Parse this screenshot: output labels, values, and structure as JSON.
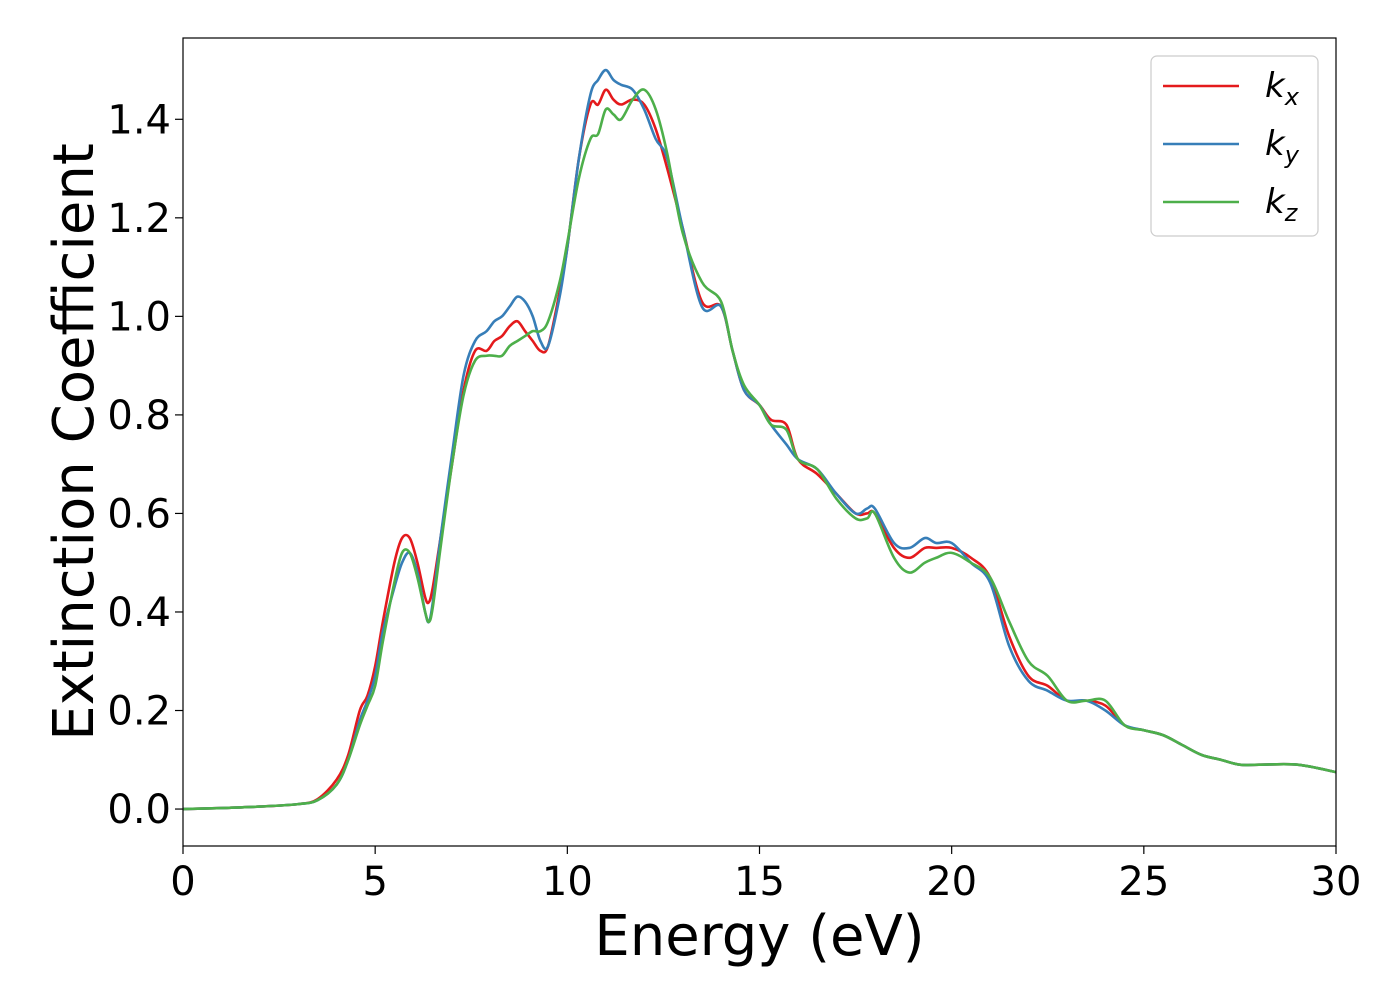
{
  "chart_data": {
    "type": "line",
    "title": "",
    "xlabel": "Energy (eV)",
    "ylabel": "Extinction Coefficient",
    "xlim": [
      0,
      30
    ],
    "ylim": [
      -0.075,
      1.565
    ],
    "xticks": [
      0,
      5,
      10,
      15,
      20,
      25,
      30
    ],
    "xtick_labels": [
      "0",
      "5",
      "10",
      "15",
      "20",
      "25",
      "30"
    ],
    "yticks": [
      0.0,
      0.2,
      0.4,
      0.6,
      0.8,
      1.0,
      1.2,
      1.4
    ],
    "ytick_labels": [
      "0.0",
      "0.2",
      "0.4",
      "0.6",
      "0.8",
      "1.0",
      "1.2",
      "1.4"
    ],
    "grid": false,
    "legend_position": "top-right",
    "series": [
      {
        "name": "k",
        "subscript": "x",
        "color": "#e41a1c",
        "x": [
          0,
          1,
          2,
          3,
          3.5,
          4,
          4.3,
          4.6,
          4.8,
          5.0,
          5.2,
          5.5,
          5.7,
          5.9,
          6.1,
          6.3,
          6.4,
          6.5,
          6.7,
          7.0,
          7.3,
          7.6,
          7.9,
          8.1,
          8.3,
          8.5,
          8.7,
          8.9,
          9.1,
          9.3,
          9.5,
          9.8,
          10.0,
          10.3,
          10.6,
          10.8,
          11.0,
          11.2,
          11.4,
          11.7,
          12.0,
          12.3,
          12.6,
          13.0,
          13.5,
          14.0,
          14.3,
          14.6,
          15.0,
          15.3,
          15.7,
          16.0,
          16.5,
          17.0,
          17.5,
          17.8,
          18.0,
          18.5,
          18.9,
          19.3,
          19.6,
          20.0,
          20.5,
          21.0,
          21.5,
          22.0,
          22.5,
          23.0,
          23.5,
          24.0,
          24.5,
          25.0,
          25.5,
          26.0,
          26.5,
          27.0,
          27.5,
          28.0,
          29.0,
          30.0
        ],
        "values": [
          0.0,
          0.002,
          0.005,
          0.01,
          0.02,
          0.06,
          0.11,
          0.2,
          0.23,
          0.29,
          0.38,
          0.5,
          0.55,
          0.55,
          0.5,
          0.43,
          0.42,
          0.45,
          0.55,
          0.7,
          0.85,
          0.93,
          0.93,
          0.95,
          0.96,
          0.98,
          0.99,
          0.97,
          0.95,
          0.93,
          0.94,
          1.05,
          1.14,
          1.32,
          1.43,
          1.43,
          1.46,
          1.44,
          1.43,
          1.44,
          1.43,
          1.38,
          1.3,
          1.18,
          1.03,
          1.02,
          0.93,
          0.85,
          0.82,
          0.79,
          0.78,
          0.71,
          0.68,
          0.64,
          0.6,
          0.6,
          0.6,
          0.53,
          0.51,
          0.53,
          0.53,
          0.53,
          0.51,
          0.47,
          0.35,
          0.27,
          0.25,
          0.22,
          0.22,
          0.21,
          0.17,
          0.16,
          0.15,
          0.13,
          0.11,
          0.1,
          0.09,
          0.09,
          0.09,
          0.075
        ]
      },
      {
        "name": "k",
        "subscript": "y",
        "color": "#377eb8",
        "x": [
          0,
          1,
          2,
          3,
          3.5,
          4,
          4.3,
          4.6,
          4.8,
          5.0,
          5.2,
          5.5,
          5.7,
          5.9,
          6.1,
          6.3,
          6.4,
          6.5,
          6.7,
          7.0,
          7.3,
          7.6,
          7.9,
          8.1,
          8.3,
          8.5,
          8.7,
          8.9,
          9.1,
          9.3,
          9.5,
          9.8,
          10.0,
          10.3,
          10.6,
          10.8,
          11.0,
          11.2,
          11.4,
          11.7,
          12.0,
          12.3,
          12.6,
          13.0,
          13.5,
          14.0,
          14.3,
          14.6,
          15.0,
          15.3,
          15.7,
          16.0,
          16.5,
          17.0,
          17.5,
          17.8,
          18.0,
          18.5,
          18.9,
          19.3,
          19.6,
          20.0,
          20.5,
          21.0,
          21.5,
          22.0,
          22.5,
          23.0,
          23.5,
          24.0,
          24.5,
          25.0,
          25.5,
          26.0,
          26.5,
          27.0,
          27.5,
          28.0,
          29.0,
          30.0
        ],
        "values": [
          0.0,
          0.002,
          0.005,
          0.01,
          0.018,
          0.05,
          0.1,
          0.18,
          0.22,
          0.27,
          0.36,
          0.45,
          0.5,
          0.52,
          0.48,
          0.4,
          0.38,
          0.42,
          0.55,
          0.72,
          0.88,
          0.95,
          0.97,
          0.99,
          1.0,
          1.02,
          1.04,
          1.03,
          1.0,
          0.95,
          0.94,
          1.04,
          1.14,
          1.32,
          1.45,
          1.48,
          1.5,
          1.48,
          1.47,
          1.46,
          1.42,
          1.36,
          1.32,
          1.18,
          1.02,
          1.02,
          0.93,
          0.85,
          0.82,
          0.78,
          0.74,
          0.71,
          0.69,
          0.64,
          0.6,
          0.61,
          0.61,
          0.54,
          0.53,
          0.55,
          0.54,
          0.54,
          0.5,
          0.46,
          0.33,
          0.26,
          0.24,
          0.22,
          0.22,
          0.2,
          0.17,
          0.16,
          0.15,
          0.13,
          0.11,
          0.1,
          0.09,
          0.09,
          0.09,
          0.075
        ]
      },
      {
        "name": "k",
        "subscript": "z",
        "color": "#4daf4a",
        "x": [
          0,
          1,
          2,
          3,
          3.5,
          4,
          4.3,
          4.6,
          4.8,
          5.0,
          5.2,
          5.5,
          5.7,
          5.9,
          6.1,
          6.3,
          6.4,
          6.5,
          6.7,
          7.0,
          7.3,
          7.6,
          7.9,
          8.1,
          8.3,
          8.5,
          8.7,
          8.9,
          9.1,
          9.3,
          9.5,
          9.8,
          10.0,
          10.3,
          10.6,
          10.8,
          11.0,
          11.2,
          11.4,
          11.7,
          12.0,
          12.3,
          12.6,
          13.0,
          13.5,
          14.0,
          14.3,
          14.6,
          15.0,
          15.3,
          15.7,
          16.0,
          16.5,
          17.0,
          17.5,
          17.8,
          18.0,
          18.5,
          18.9,
          19.3,
          19.6,
          20.0,
          20.5,
          21.0,
          21.5,
          22.0,
          22.5,
          23.0,
          23.5,
          24.0,
          24.5,
          25.0,
          25.5,
          26.0,
          26.5,
          27.0,
          27.5,
          28.0,
          29.0,
          30.0
        ],
        "values": [
          0.0,
          0.002,
          0.005,
          0.01,
          0.018,
          0.05,
          0.1,
          0.17,
          0.21,
          0.25,
          0.34,
          0.46,
          0.52,
          0.52,
          0.47,
          0.4,
          0.38,
          0.41,
          0.53,
          0.7,
          0.84,
          0.91,
          0.92,
          0.92,
          0.92,
          0.94,
          0.95,
          0.96,
          0.97,
          0.97,
          0.99,
          1.07,
          1.15,
          1.28,
          1.36,
          1.37,
          1.42,
          1.41,
          1.4,
          1.44,
          1.46,
          1.42,
          1.33,
          1.17,
          1.07,
          1.03,
          0.93,
          0.86,
          0.82,
          0.78,
          0.77,
          0.71,
          0.69,
          0.63,
          0.59,
          0.59,
          0.6,
          0.51,
          0.48,
          0.5,
          0.51,
          0.52,
          0.5,
          0.47,
          0.38,
          0.3,
          0.27,
          0.22,
          0.22,
          0.22,
          0.17,
          0.16,
          0.15,
          0.13,
          0.11,
          0.1,
          0.09,
          0.09,
          0.09,
          0.075
        ]
      }
    ]
  }
}
